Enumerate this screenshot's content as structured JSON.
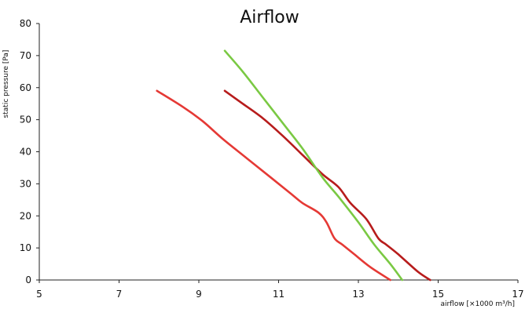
{
  "chart_data": {
    "type": "line",
    "title": "Airflow",
    "xlabel": "airflow [×1000 m³/h]",
    "ylabel": "static pressure [Pa]",
    "xlim": [
      5,
      17
    ],
    "ylim": [
      0,
      80
    ],
    "x_ticks": [
      5,
      7,
      9,
      11,
      13,
      15,
      17
    ],
    "y_ticks": [
      0,
      10,
      20,
      30,
      40,
      50,
      60,
      70,
      80
    ],
    "grid": false,
    "legend": "none",
    "series": [
      {
        "color": "#e53935",
        "points": [
          [
            7.95,
            59
          ],
          [
            8.6,
            54
          ],
          [
            9.1,
            49.5
          ],
          [
            9.6,
            44
          ],
          [
            10.2,
            38
          ],
          [
            10.8,
            32
          ],
          [
            11.3,
            27
          ],
          [
            11.6,
            24
          ],
          [
            12.0,
            21
          ],
          [
            12.2,
            18
          ],
          [
            12.4,
            13
          ],
          [
            12.6,
            11
          ],
          [
            12.9,
            8
          ],
          [
            13.3,
            4
          ],
          [
            13.8,
            0
          ]
        ]
      },
      {
        "color": "#b71c1c",
        "points": [
          [
            9.65,
            59
          ],
          [
            10.1,
            55
          ],
          [
            10.6,
            50.5
          ],
          [
            11.1,
            45
          ],
          [
            11.6,
            39
          ],
          [
            12.1,
            33
          ],
          [
            12.5,
            29
          ],
          [
            12.8,
            24
          ],
          [
            13.2,
            19
          ],
          [
            13.5,
            13
          ],
          [
            13.7,
            11
          ],
          [
            14.0,
            8
          ],
          [
            14.5,
            2.5
          ],
          [
            14.8,
            0
          ]
        ]
      },
      {
        "color": "#7ac943",
        "points": [
          [
            9.65,
            71.5
          ],
          [
            10.1,
            65
          ],
          [
            10.6,
            57
          ],
          [
            11.1,
            49
          ],
          [
            11.6,
            41
          ],
          [
            12.1,
            32
          ],
          [
            12.5,
            26
          ],
          [
            13.0,
            18
          ],
          [
            13.4,
            11
          ],
          [
            13.8,
            5
          ],
          [
            14.1,
            0
          ]
        ]
      }
    ]
  }
}
